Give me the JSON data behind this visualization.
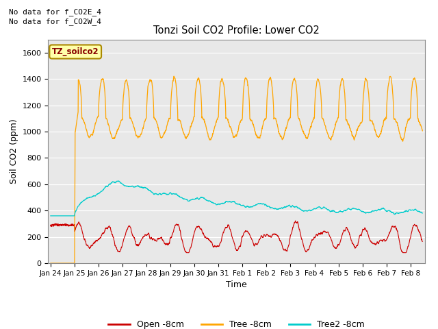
{
  "title": "Tonzi Soil CO2 Profile: Lower CO2",
  "xlabel": "Time",
  "ylabel": "Soil CO2 (ppm)",
  "top_left_text_line1": "No data for f_CO2E_4",
  "top_left_text_line2": "No data for f_CO2W_4",
  "legend_box_text": "TZ_soilco2",
  "ylim": [
    0,
    1700
  ],
  "yticks": [
    0,
    200,
    400,
    600,
    800,
    1000,
    1200,
    1400,
    1600
  ],
  "xtick_labels": [
    "Jan 24",
    "Jan 25",
    "Jan 26",
    "Jan 27",
    "Jan 28",
    "Jan 29",
    "Jan 30",
    "Jan 31",
    "Feb 1",
    "Feb 2",
    "Feb 3",
    "Feb 4",
    "Feb 5",
    "Feb 6",
    "Feb 7",
    "Feb 8"
  ],
  "bg_color": "#e8e8e8",
  "open_color": "#cc0000",
  "tree_color": "#ffa500",
  "tree2_color": "#00cccc",
  "legend_labels": [
    "Open -8cm",
    "Tree -8cm",
    "Tree2 -8cm"
  ],
  "legend_box_facecolor": "#ffffaa",
  "legend_box_edgecolor": "#aa8800"
}
